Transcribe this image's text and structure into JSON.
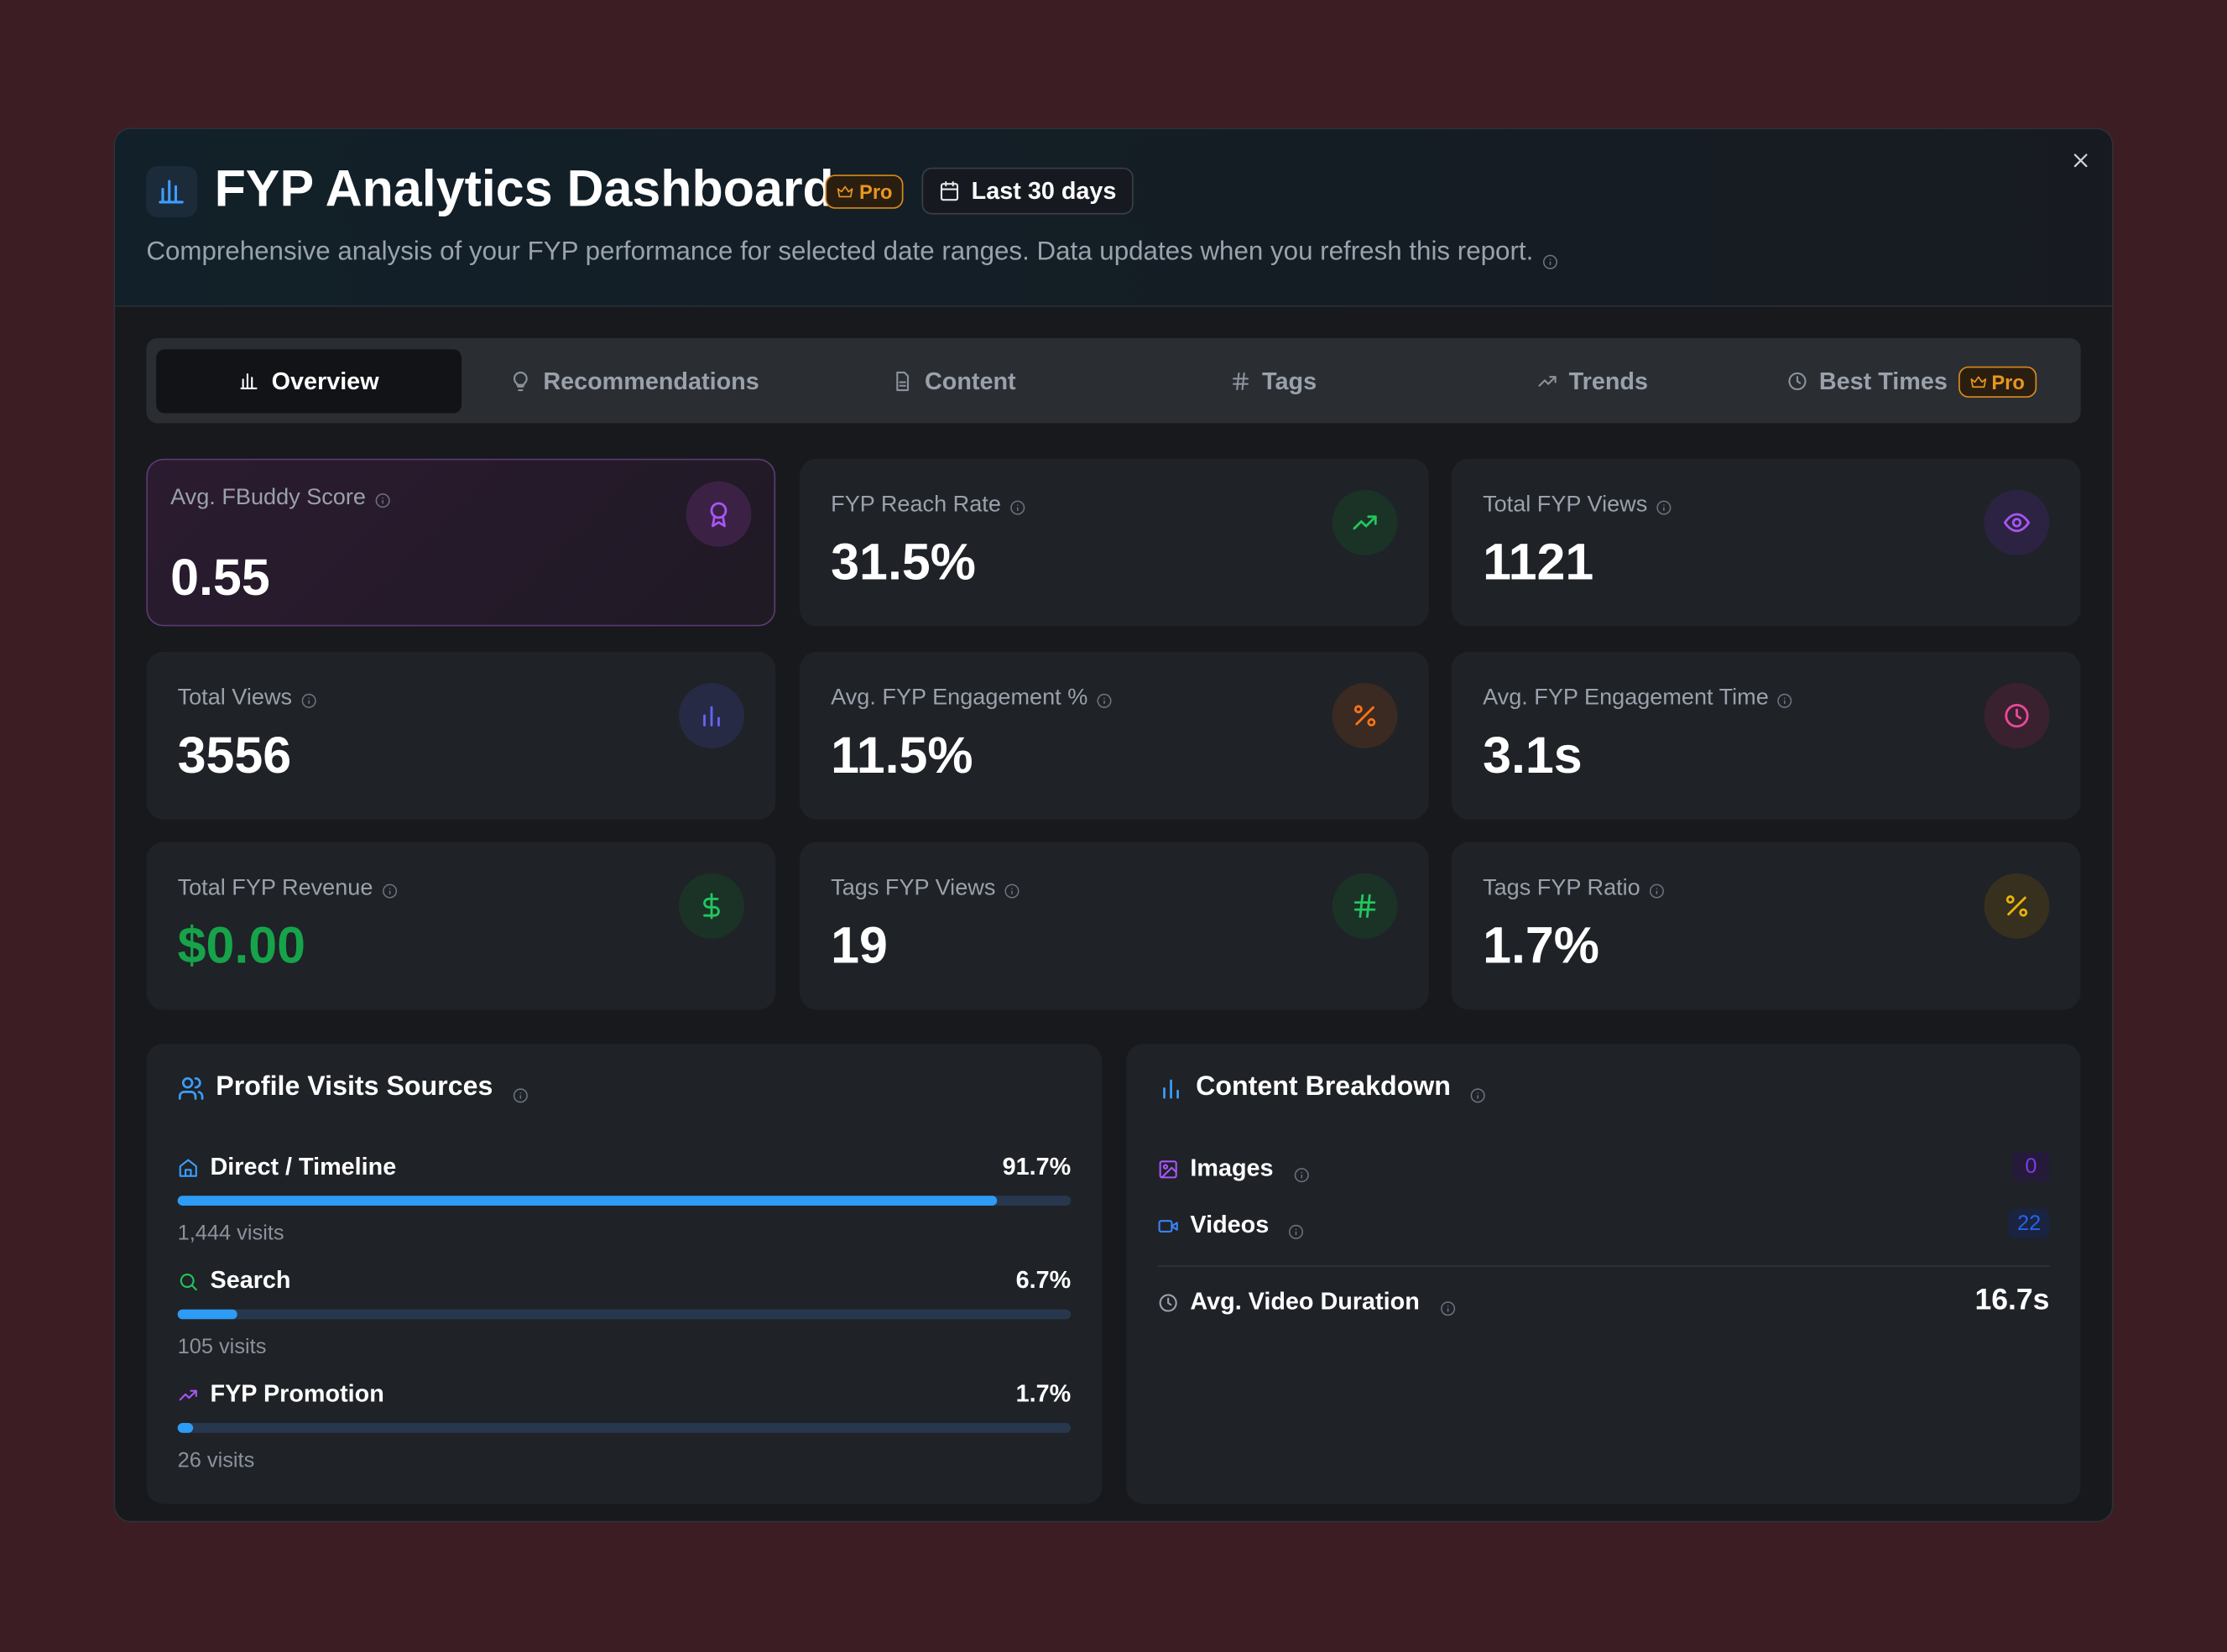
{
  "header": {
    "title": "FYP Analytics Dashboard",
    "badge": "Pro",
    "date_range": "Last 30 days",
    "subtitle": "Comprehensive analysis of your FYP performance for selected date ranges. Data updates when you refresh this report."
  },
  "tabs": [
    {
      "label": "Overview"
    },
    {
      "label": "Recommendations"
    },
    {
      "label": "Content"
    },
    {
      "label": "Tags"
    },
    {
      "label": "Trends"
    },
    {
      "label": "Best Times",
      "badge": "Pro"
    }
  ],
  "metrics": [
    {
      "label": "Avg. FBuddy Score",
      "value": "0.55"
    },
    {
      "label": "FYP Reach Rate",
      "value": "31.5%"
    },
    {
      "label": "Total FYP Views",
      "value": "1121"
    },
    {
      "label": "Total Views",
      "value": "3556"
    },
    {
      "label": "Avg. FYP Engagement %",
      "value": "11.5%"
    },
    {
      "label": "Avg. FYP Engagement Time",
      "value": "3.1s"
    },
    {
      "label": "Total FYP Revenue",
      "value": "$0.00"
    },
    {
      "label": "Tags FYP Views",
      "value": "19"
    },
    {
      "label": "Tags FYP Ratio",
      "value": "1.7%"
    }
  ],
  "profile_sources": {
    "title": "Profile Visits Sources",
    "items": [
      {
        "name": "Direct / Timeline",
        "value": 91.7,
        "value_label": "91.7%",
        "visits": "1,444 visits"
      },
      {
        "name": "Search",
        "value": 6.7,
        "value_label": "6.7%",
        "visits": "105 visits"
      },
      {
        "name": "FYP Promotion",
        "value": 1.7,
        "value_label": "1.7%",
        "visits": "26 visits"
      }
    ]
  },
  "content_breakdown": {
    "title": "Content Breakdown",
    "items": [
      {
        "name": "Images",
        "count": "0"
      },
      {
        "name": "Videos",
        "count": "22"
      }
    ],
    "avg_label": "Avg. Video Duration",
    "avg_value": "16.7s"
  }
}
